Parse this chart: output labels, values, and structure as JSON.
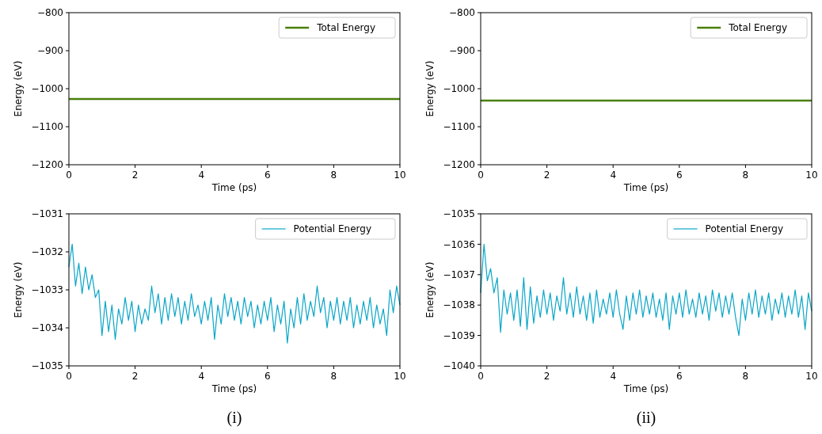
{
  "chart_data": [
    {
      "type": "line",
      "xlabel": "Time (ps)",
      "ylabel": "Energy (eV)",
      "xlim": [
        0,
        10
      ],
      "xticks": [
        0,
        2,
        4,
        6,
        8,
        10
      ],
      "ylim": [
        -1200,
        -800
      ],
      "yticks": [
        {
          "value": -1200,
          "label": "−1200"
        },
        {
          "value": -1100,
          "label": "−1100"
        },
        {
          "value": -1000,
          "label": "−1000"
        },
        {
          "value": -900,
          "label": "−900"
        },
        {
          "value": -800,
          "label": "−800"
        }
      ],
      "legend": "top right",
      "x": [
        0,
        10
      ],
      "series": [
        {
          "name": "Total Energy",
          "color": "#4a7f0a",
          "values": [
            -1027,
            -1027
          ]
        }
      ]
    },
    {
      "type": "line",
      "xlabel": "Time (ps)",
      "ylabel": "Energy (eV)",
      "xlim": [
        0,
        10
      ],
      "xticks": [
        0,
        2,
        4,
        6,
        8,
        10
      ],
      "ylim": [
        -1200,
        -800
      ],
      "yticks": [
        {
          "value": -1200,
          "label": "−1200"
        },
        {
          "value": -1100,
          "label": "−1100"
        },
        {
          "value": -1000,
          "label": "−1000"
        },
        {
          "value": -900,
          "label": "−900"
        },
        {
          "value": -800,
          "label": "−800"
        }
      ],
      "legend": "top right",
      "x": [
        0,
        10
      ],
      "series": [
        {
          "name": "Total Energy",
          "color": "#4a7f0a",
          "values": [
            -1031,
            -1031
          ]
        }
      ]
    },
    {
      "type": "line",
      "xlabel": "Time (ps)",
      "ylabel": "Energy (eV)",
      "xlim": [
        0,
        10
      ],
      "xticks": [
        0,
        2,
        4,
        6,
        8,
        10
      ],
      "ylim": [
        -1035,
        -1031
      ],
      "yticks": [
        {
          "value": -1035,
          "label": "−1035"
        },
        {
          "value": -1034,
          "label": "−1034"
        },
        {
          "value": -1033,
          "label": "−1033"
        },
        {
          "value": -1032,
          "label": "−1032"
        },
        {
          "value": -1031,
          "label": "−1031"
        }
      ],
      "legend": "top right",
      "annotations": [
        "(i)"
      ],
      "x": [
        0,
        0.1,
        0.2,
        0.3,
        0.4,
        0.5,
        0.6,
        0.7,
        0.8,
        0.9,
        1,
        1.1,
        1.2,
        1.3,
        1.4,
        1.5,
        1.6,
        1.7,
        1.8,
        1.9,
        2,
        2.1,
        2.2,
        2.3,
        2.4,
        2.5,
        2.6,
        2.7,
        2.8,
        2.9,
        3,
        3.1,
        3.2,
        3.3,
        3.4,
        3.5,
        3.6,
        3.7,
        3.8,
        3.9,
        4,
        4.1,
        4.2,
        4.3,
        4.4,
        4.5,
        4.6,
        4.7,
        4.8,
        4.9,
        5,
        5.1,
        5.2,
        5.3,
        5.4,
        5.5,
        5.6,
        5.7,
        5.8,
        5.9,
        6,
        6.1,
        6.2,
        6.3,
        6.4,
        6.5,
        6.6,
        6.7,
        6.8,
        6.9,
        7,
        7.1,
        7.2,
        7.3,
        7.4,
        7.5,
        7.6,
        7.7,
        7.8,
        7.9,
        8,
        8.1,
        8.2,
        8.3,
        8.4,
        8.5,
        8.6,
        8.7,
        8.8,
        8.9,
        9,
        9.1,
        9.2,
        9.3,
        9.4,
        9.5,
        9.6,
        9.7,
        9.8,
        9.9,
        10
      ],
      "series": [
        {
          "name": "Potential Energy",
          "color": "#0aa6c8",
          "values": [
            -1032.4,
            -1031.8,
            -1032.9,
            -1032.3,
            -1033.1,
            -1032.4,
            -1033.0,
            -1032.6,
            -1033.2,
            -1033.0,
            -1034.2,
            -1033.3,
            -1034.1,
            -1033.4,
            -1034.3,
            -1033.5,
            -1033.9,
            -1033.2,
            -1033.8,
            -1033.3,
            -1034.1,
            -1033.4,
            -1033.9,
            -1033.5,
            -1033.8,
            -1032.9,
            -1033.6,
            -1033.1,
            -1033.9,
            -1033.2,
            -1033.8,
            -1033.1,
            -1033.7,
            -1033.2,
            -1033.9,
            -1033.3,
            -1033.8,
            -1033.1,
            -1033.7,
            -1033.4,
            -1033.9,
            -1033.3,
            -1033.8,
            -1033.2,
            -1034.3,
            -1033.4,
            -1033.9,
            -1033.1,
            -1033.7,
            -1033.2,
            -1033.8,
            -1033.3,
            -1033.9,
            -1033.2,
            -1033.7,
            -1033.3,
            -1034.0,
            -1033.4,
            -1033.9,
            -1033.3,
            -1033.8,
            -1033.2,
            -1034.1,
            -1033.4,
            -1033.9,
            -1033.3,
            -1034.4,
            -1033.5,
            -1034.0,
            -1033.2,
            -1033.9,
            -1033.1,
            -1033.8,
            -1033.3,
            -1033.7,
            -1032.9,
            -1033.6,
            -1033.2,
            -1034.0,
            -1033.3,
            -1033.8,
            -1033.2,
            -1033.9,
            -1033.3,
            -1033.8,
            -1033.2,
            -1034.0,
            -1033.4,
            -1033.9,
            -1033.3,
            -1033.8,
            -1033.2,
            -1034.0,
            -1033.4,
            -1033.9,
            -1033.5,
            -1034.2,
            -1033.0,
            -1033.6,
            -1032.9,
            -1033.4
          ]
        }
      ]
    },
    {
      "type": "line",
      "xlabel": "Time (ps)",
      "ylabel": "Energy (eV)",
      "xlim": [
        0,
        10
      ],
      "xticks": [
        0,
        2,
        4,
        6,
        8,
        10
      ],
      "ylim": [
        -1040,
        -1035
      ],
      "yticks": [
        {
          "value": -1040,
          "label": "−1040"
        },
        {
          "value": -1039,
          "label": "−1039"
        },
        {
          "value": -1038,
          "label": "−1038"
        },
        {
          "value": -1037,
          "label": "−1037"
        },
        {
          "value": -1036,
          "label": "−1036"
        },
        {
          "value": -1035,
          "label": "−1035"
        }
      ],
      "legend": "top right",
      "annotations": [
        "(ii)"
      ],
      "x": [
        0,
        0.1,
        0.2,
        0.3,
        0.4,
        0.5,
        0.6,
        0.7,
        0.8,
        0.9,
        1,
        1.1,
        1.2,
        1.3,
        1.4,
        1.5,
        1.6,
        1.7,
        1.8,
        1.9,
        2,
        2.1,
        2.2,
        2.3,
        2.4,
        2.5,
        2.6,
        2.7,
        2.8,
        2.9,
        3,
        3.1,
        3.2,
        3.3,
        3.4,
        3.5,
        3.6,
        3.7,
        3.8,
        3.9,
        4,
        4.1,
        4.2,
        4.3,
        4.4,
        4.5,
        4.6,
        4.7,
        4.8,
        4.9,
        5,
        5.1,
        5.2,
        5.3,
        5.4,
        5.5,
        5.6,
        5.7,
        5.8,
        5.9,
        6,
        6.1,
        6.2,
        6.3,
        6.4,
        6.5,
        6.6,
        6.7,
        6.8,
        6.9,
        7,
        7.1,
        7.2,
        7.3,
        7.4,
        7.5,
        7.6,
        7.7,
        7.8,
        7.9,
        8,
        8.1,
        8.2,
        8.3,
        8.4,
        8.5,
        8.6,
        8.7,
        8.8,
        8.9,
        9,
        9.1,
        9.2,
        9.3,
        9.4,
        9.5,
        9.6,
        9.7,
        9.8,
        9.9,
        10
      ],
      "series": [
        {
          "name": "Potential Energy",
          "color": "#0aa6c8",
          "values": [
            -1037.6,
            -1036.0,
            -1037.2,
            -1036.8,
            -1037.6,
            -1037.1,
            -1038.9,
            -1037.5,
            -1038.3,
            -1037.6,
            -1038.5,
            -1037.5,
            -1038.7,
            -1037.1,
            -1038.8,
            -1037.4,
            -1038.6,
            -1037.7,
            -1038.4,
            -1037.5,
            -1038.3,
            -1037.6,
            -1038.5,
            -1037.7,
            -1038.2,
            -1037.1,
            -1038.3,
            -1037.6,
            -1038.4,
            -1037.4,
            -1038.3,
            -1037.7,
            -1038.5,
            -1037.6,
            -1038.6,
            -1037.5,
            -1038.4,
            -1037.8,
            -1038.3,
            -1037.6,
            -1038.4,
            -1037.5,
            -1038.3,
            -1038.8,
            -1037.7,
            -1038.5,
            -1037.6,
            -1038.3,
            -1037.5,
            -1038.4,
            -1037.7,
            -1038.3,
            -1037.6,
            -1038.4,
            -1037.8,
            -1038.5,
            -1037.6,
            -1038.8,
            -1037.7,
            -1038.3,
            -1037.6,
            -1038.4,
            -1037.5,
            -1038.3,
            -1037.8,
            -1038.4,
            -1037.6,
            -1038.3,
            -1037.7,
            -1038.5,
            -1037.5,
            -1038.2,
            -1037.6,
            -1038.4,
            -1037.7,
            -1038.3,
            -1037.6,
            -1038.4,
            -1039.0,
            -1037.8,
            -1038.5,
            -1037.6,
            -1038.3,
            -1037.5,
            -1038.4,
            -1037.7,
            -1038.3,
            -1037.6,
            -1038.5,
            -1037.8,
            -1038.3,
            -1037.6,
            -1038.4,
            -1037.7,
            -1038.3,
            -1037.5,
            -1038.4,
            -1037.7,
            -1038.8,
            -1037.6,
            -1038.2
          ]
        }
      ]
    }
  ]
}
